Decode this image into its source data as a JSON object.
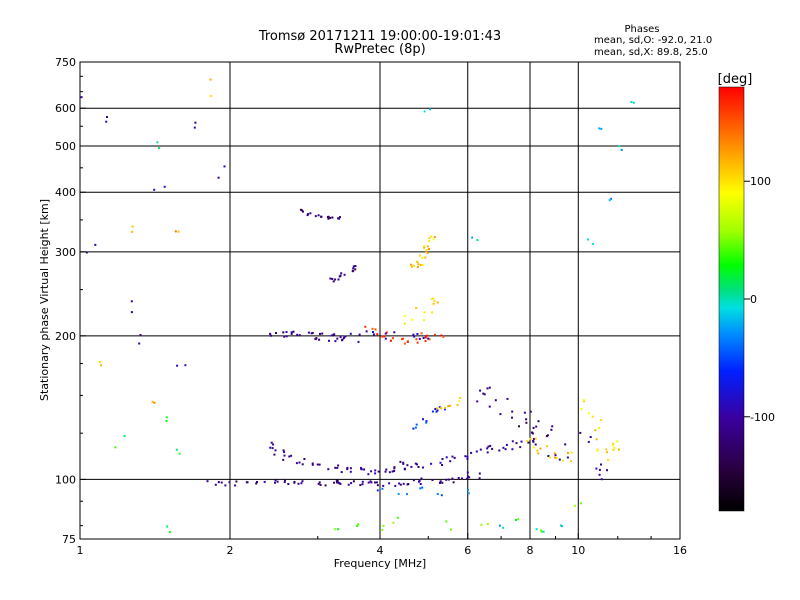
{
  "chart_data": {
    "type": "scatter",
    "title": "Tromsø 20171211 19:00:00-19:01:43",
    "subtitle": "RwPretec (8p)",
    "xlabel": "Frequency [MHz]",
    "ylabel": "Stationary phase Virtual Height [km]",
    "x_scale": "log",
    "y_scale": "log",
    "xlim": [
      1,
      16
    ],
    "ylim": [
      75,
      750
    ],
    "x_ticks": [
      1,
      2,
      4,
      6,
      8,
      10,
      16
    ],
    "x_tick_labels": [
      "1",
      "2",
      "4",
      "6",
      "8",
      "10",
      "16"
    ],
    "x_gridlines": [
      2,
      4,
      6,
      8,
      10
    ],
    "y_ticks": [
      75,
      100,
      200,
      300,
      400,
      500,
      600,
      750
    ],
    "y_tick_labels": [
      "75",
      "100",
      "200",
      "300",
      "400",
      "500",
      "600",
      "750"
    ],
    "y_gridlines": [
      100,
      200,
      300,
      400,
      500,
      600
    ],
    "grid": true,
    "phase_stats": {
      "heading": "Phases",
      "line_o": "mean, sd,O: -92.0, 21.0",
      "line_x": "mean, sd,X:  89.8, 25.0"
    },
    "colorbar": {
      "label": "[deg]",
      "range": [
        -180,
        180
      ],
      "ticks": [
        100,
        0,
        -100
      ],
      "tick_labels": [
        "100",
        "0",
        "-100"
      ],
      "colormap": "rainbow"
    },
    "point_groups": [
      {
        "x": [
          1.85,
          2.0,
          2.2,
          2.4,
          2.6,
          2.8,
          3.0,
          3.2,
          3.4,
          3.6,
          3.8,
          4.0,
          4.3,
          4.6,
          4.9,
          5.2,
          5.5,
          5.8,
          6.1
        ],
        "y": [
          98,
          98,
          99,
          99,
          99,
          99,
          98,
          98,
          98,
          98,
          98,
          98,
          98,
          99,
          99,
          99,
          100,
          101,
          102
        ],
        "phase": -115,
        "spread_x": 0.04,
        "spread_y": 0.015,
        "repeat": 4
      },
      {
        "x": [
          2.4,
          2.5,
          2.6,
          2.8,
          3.0,
          3.2,
          3.4,
          3.6,
          3.8,
          4.0,
          4.3,
          4.6
        ],
        "y": [
          118,
          114,
          111,
          109,
          107,
          106,
          105,
          105,
          104,
          104,
          105,
          106
        ],
        "phase": -110,
        "spread_x": 0.03,
        "spread_y": 0.015,
        "repeat": 4
      },
      {
        "x": [
          4.4,
          4.8,
          5.2,
          5.6,
          6.0,
          6.4,
          6.8,
          7.2,
          7.6,
          8.0
        ],
        "y": [
          107,
          108,
          109,
          111,
          112,
          114,
          116,
          117,
          118,
          120
        ],
        "phase": -105,
        "spread_x": 0.03,
        "spread_y": 0.02,
        "repeat": 4
      },
      {
        "x": [
          2.5,
          2.7,
          2.9,
          3.1,
          3.3,
          3.5
        ],
        "y": [
          203,
          201,
          200,
          199,
          198,
          198
        ],
        "phase": -110,
        "spread_x": 0.04,
        "spread_y": 0.02,
        "repeat": 6
      },
      {
        "x": [
          3.8,
          4.0,
          4.2,
          4.4,
          4.6,
          4.8,
          5.0,
          5.2
        ],
        "y": [
          205,
          200,
          198,
          196,
          197,
          198,
          199,
          200
        ],
        "phase": 160,
        "spread_x": 0.04,
        "spread_y": 0.02,
        "repeat": 3
      },
      {
        "x": [
          3.8,
          4.2,
          4.6,
          5.0
        ],
        "y": [
          203,
          201,
          199,
          201
        ],
        "phase": -100,
        "spread_x": 0.04,
        "spread_y": 0.02,
        "repeat": 3
      },
      {
        "x": [
          2.8,
          2.9,
          3.0,
          3.1,
          3.2,
          3.3
        ],
        "y": [
          365,
          360,
          358,
          355,
          352,
          352
        ],
        "phase": -110,
        "spread_x": 0.02,
        "spread_y": 0.01,
        "repeat": 3
      },
      {
        "x": [
          3.2,
          3.3,
          3.4,
          3.5,
          3.6
        ],
        "y": [
          262,
          265,
          270,
          275,
          278
        ],
        "phase": -110,
        "spread_x": 0.02,
        "spread_y": 0.01,
        "repeat": 3
      },
      {
        "x": [
          4.7,
          4.8,
          4.9,
          5.0,
          5.1
        ],
        "y": [
          280,
          285,
          295,
          305,
          320
        ],
        "phase": 110,
        "spread_x": 0.02,
        "spread_y": 0.02,
        "repeat": 5
      },
      {
        "x": [
          4.6,
          4.8,
          5.0,
          5.2
        ],
        "y": [
          215,
          222,
          230,
          238
        ],
        "phase": 100,
        "spread_x": 0.03,
        "spread_y": 0.03,
        "repeat": 3
      },
      {
        "x": [
          4.7,
          4.9,
          5.1,
          5.3
        ],
        "y": [
          128,
          133,
          138,
          142
        ],
        "phase": -60,
        "spread_x": 0.02,
        "spread_y": 0.02,
        "repeat": 3
      },
      {
        "x": [
          5.3,
          5.5,
          5.7
        ],
        "y": [
          140,
          143,
          146
        ],
        "phase": 110,
        "spread_x": 0.02,
        "spread_y": 0.02,
        "repeat": 3
      },
      {
        "x": [
          6.4,
          6.8,
          7.2,
          7.6,
          8.0,
          8.4,
          8.8,
          9.2
        ],
        "y": [
          150,
          145,
          140,
          135,
          130,
          125,
          120,
          115
        ],
        "phase": -115,
        "spread_x": 0.04,
        "spread_y": 0.08,
        "repeat": 4
      },
      {
        "x": [
          8.0,
          8.5,
          9.0,
          9.5
        ],
        "y": [
          118,
          114,
          112,
          110
        ],
        "phase": 110,
        "spread_x": 0.03,
        "spread_y": 0.04,
        "repeat": 4
      },
      {
        "x": [
          10.4,
          10.8,
          11.2,
          11.6,
          12.0
        ],
        "y": [
          140,
          130,
          120,
          115,
          118
        ],
        "phase": 100,
        "spread_x": 0.03,
        "spread_y": 0.05,
        "repeat": 4
      },
      {
        "x": [
          10.4,
          10.8,
          11.2
        ],
        "y": [
          125,
          110,
          100
        ],
        "phase": -110,
        "spread_x": 0.03,
        "spread_y": 0.05,
        "repeat": 3
      },
      {
        "x": [
          1.0,
          1.05,
          1.15,
          1.25,
          1.35,
          1.45,
          1.6,
          1.75,
          1.9
        ],
        "y": [
          620,
          300,
          560,
          230,
          200,
          420,
          180,
          540,
          440
        ],
        "phase": -100,
        "spread_x": 0.03,
        "spread_y": 0.04,
        "repeat": 2
      },
      {
        "x": [
          1.1,
          1.3,
          1.4,
          1.6,
          1.8
        ],
        "y": [
          175,
          340,
          150,
          320,
          660
        ],
        "phase": 120,
        "spread_x": 0.03,
        "spread_y": 0.05,
        "repeat": 2
      },
      {
        "x": [
          1.2,
          1.4,
          1.45,
          1.6,
          1.5
        ],
        "y": [
          120,
          500,
          130,
          115,
          80
        ],
        "phase": 20,
        "spread_x": 0.03,
        "spread_y": 0.04,
        "repeat": 2
      },
      {
        "x": [
          11.2,
          11.6,
          12.0,
          13.0,
          10.6
        ],
        "y": [
          540,
          390,
          500,
          630,
          320
        ],
        "phase": -20,
        "spread_x": 0.02,
        "spread_y": 0.03,
        "repeat": 2
      },
      {
        "x": [
          5.0,
          6.2,
          7.0,
          8.4,
          9.2
        ],
        "y": [
          600,
          315,
          80,
          78,
          79
        ],
        "phase": -10,
        "spread_x": 0.02,
        "spread_y": 0.02,
        "repeat": 2
      },
      {
        "x": [
          3.3,
          3.6,
          4.0,
          4.3,
          5.5,
          6.5,
          7.5,
          8.5,
          10.0
        ],
        "y": [
          78,
          80,
          79,
          82,
          80,
          81,
          83,
          79,
          88
        ],
        "phase": 40,
        "spread_x": 0.02,
        "spread_y": 0.02,
        "repeat": 2
      },
      {
        "x": [
          4.0,
          4.4,
          4.8,
          5.3,
          5.9
        ],
        "y": [
          95,
          92,
          96,
          93,
          94
        ],
        "phase": -40,
        "spread_x": 0.03,
        "spread_y": 0.02,
        "repeat": 2
      }
    ]
  }
}
